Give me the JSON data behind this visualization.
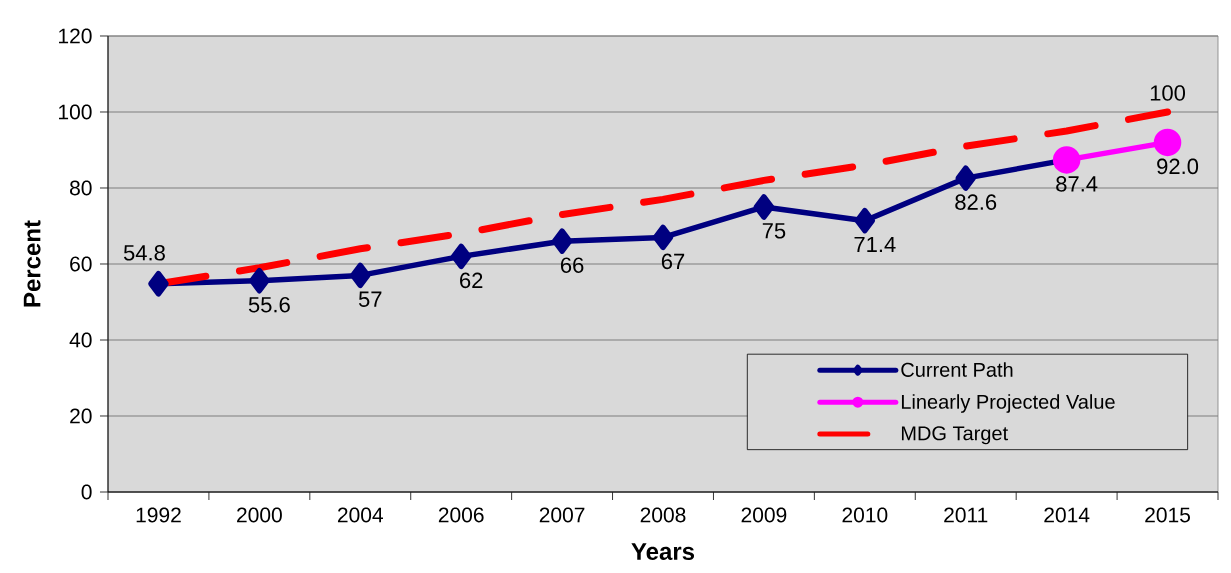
{
  "chart_data": {
    "type": "line",
    "xlabel": "Years",
    "ylabel": "Percent",
    "categories": [
      "1992",
      "2000",
      "2004",
      "2006",
      "2007",
      "2008",
      "2009",
      "2010",
      "2011",
      "2014",
      "2015"
    ],
    "series": [
      {
        "name": "Current Path",
        "color": "#000080",
        "marker": "diamond",
        "values": [
          54.8,
          55.6,
          57,
          62,
          66,
          67,
          75,
          71.4,
          82.6,
          87.4,
          null
        ],
        "value_labels": [
          "54.8",
          "55.6",
          "57",
          "62",
          "66",
          "67",
          "75",
          "71.4",
          "82.6",
          "87.4",
          null
        ]
      },
      {
        "name": "Linearly Projected Value",
        "color": "#ff00ff",
        "marker": "circle",
        "values": [
          null,
          null,
          null,
          null,
          null,
          null,
          null,
          null,
          null,
          87.4,
          92.0
        ],
        "value_labels": [
          null,
          null,
          null,
          null,
          null,
          null,
          null,
          null,
          null,
          null,
          "92.0"
        ]
      },
      {
        "name": "MDG Target",
        "color": "#ff0000",
        "line_style": "dashed",
        "values": [
          54.8,
          59,
          64,
          68,
          73,
          77,
          82,
          86,
          91,
          95,
          100
        ],
        "value_labels": [
          null,
          null,
          null,
          null,
          null,
          null,
          null,
          null,
          null,
          null,
          "100"
        ]
      }
    ],
    "ylim": [
      0,
      120
    ],
    "yticks": [
      0,
      20,
      40,
      60,
      80,
      100,
      120
    ],
    "grid": "y",
    "legend": "bottom right"
  }
}
